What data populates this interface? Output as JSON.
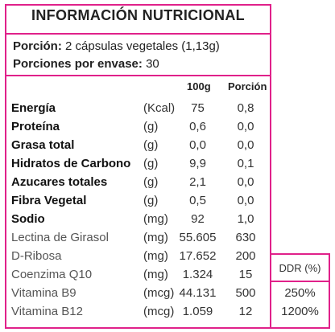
{
  "title": "INFORMACIÓN NUTRICIONAL",
  "serving": {
    "portion_label": "Porción:",
    "portion_value": "2 cápsulas vegetales (1,13g)",
    "per_container_label": "Porciones por envase:",
    "per_container_value": "30"
  },
  "columns": {
    "per100": "100g",
    "portion": "Porción",
    "ddr": "DDR (%)"
  },
  "rows": [
    {
      "name": "Energía",
      "unit": "(Kcal)",
      "v100": "75",
      "vportion": "0,8"
    },
    {
      "name": "Proteína",
      "unit": "(g)",
      "v100": "0,6",
      "vportion": "0,0"
    },
    {
      "name": "Grasa total",
      "unit": "(g)",
      "v100": "0,0",
      "vportion": "0,0"
    },
    {
      "name": "Hidratos de Carbono",
      "unit": "(g)",
      "v100": "9,9",
      "vportion": "0,1"
    },
    {
      "name": "Azucares totales",
      "unit": "(g)",
      "v100": "2,1",
      "vportion": "0,0"
    },
    {
      "name": "Fibra Vegetal",
      "unit": "(g)",
      "v100": "0,5",
      "vportion": "0,0"
    },
    {
      "name": "Sodio",
      "unit": "(mg)",
      "v100": "92",
      "vportion": "1,0"
    },
    {
      "name": "Lectina de Girasol",
      "unit": "(mg)",
      "v100": "55.605",
      "vportion": "630"
    },
    {
      "name": "D-Ribosa",
      "unit": "(mg)",
      "v100": "17.652",
      "vportion": "200"
    },
    {
      "name": "Coenzima Q10",
      "unit": "(mg)",
      "v100": "1.324",
      "vportion": "15"
    },
    {
      "name": "Vitamina B9",
      "unit": "(mcg)",
      "v100": "44.131",
      "vportion": "500",
      "ddr": "250%"
    },
    {
      "name": "Vitamina B12",
      "unit": "(mcg)",
      "v100": "1.059",
      "vportion": "12",
      "ddr": "1200%"
    }
  ]
}
